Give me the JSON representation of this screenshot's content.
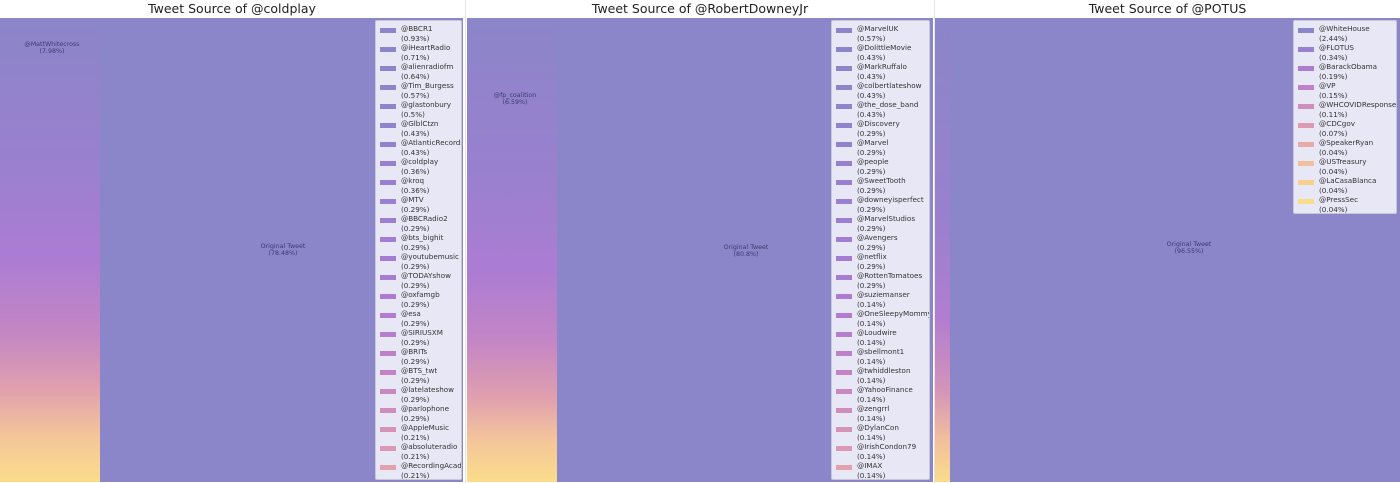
{
  "chart_data": [
    {
      "type": "treemap",
      "title": "Tweet Source of @coldplay",
      "original_label": "Original Tweet",
      "original_pct": "(78.48%)",
      "retweet_label": "@MattWhitecross",
      "retweet_pct": "(7.98%)",
      "legend": [
        {
          "name": "@BBCR1",
          "pct": "(0.93%)",
          "value": 0.93,
          "color": "#8b85c9"
        },
        {
          "name": "@iHeartRadio",
          "pct": "(0.71%)",
          "value": 0.71,
          "color": "#8b85c9"
        },
        {
          "name": "@alienradiofm",
          "pct": "(0.64%)",
          "value": 0.64,
          "color": "#8c85ca"
        },
        {
          "name": "@Tim_Burgess",
          "pct": "(0.57%)",
          "value": 0.57,
          "color": "#8d84cb"
        },
        {
          "name": "@glastonbury",
          "pct": "(0.5%)",
          "value": 0.5,
          "color": "#8f84cc"
        },
        {
          "name": "@GlblCtzn",
          "pct": "(0.43%)",
          "value": 0.43,
          "color": "#9182cd"
        },
        {
          "name": "@AtlanticRecords",
          "pct": "(0.43%)",
          "value": 0.43,
          "color": "#9381ce"
        },
        {
          "name": "@coldplay",
          "pct": "(0.36%)",
          "value": 0.36,
          "color": "#9680cf"
        },
        {
          "name": "@kroq",
          "pct": "(0.36%)",
          "value": 0.36,
          "color": "#987fd0"
        },
        {
          "name": "@MTV",
          "pct": "(0.29%)",
          "value": 0.29,
          "color": "#9b7fd1"
        },
        {
          "name": "@BBCRadio2",
          "pct": "(0.29%)",
          "value": 0.29,
          "color": "#9e7ed2"
        },
        {
          "name": "@bts_bighit",
          "pct": "(0.29%)",
          "value": 0.29,
          "color": "#a17dd3"
        },
        {
          "name": "@youtubemusic",
          "pct": "(0.29%)",
          "value": 0.29,
          "color": "#a47cd3"
        },
        {
          "name": "@TODAYshow",
          "pct": "(0.29%)",
          "value": 0.29,
          "color": "#a97cd3"
        },
        {
          "name": "@oxfamgb",
          "pct": "(0.29%)",
          "value": 0.29,
          "color": "#ad7cd2"
        },
        {
          "name": "@esa",
          "pct": "(0.29%)",
          "value": 0.29,
          "color": "#b27dd0"
        },
        {
          "name": "@SIRIUSXM",
          "pct": "(0.29%)",
          "value": 0.29,
          "color": "#b77ecd"
        },
        {
          "name": "@BRITs",
          "pct": "(0.29%)",
          "value": 0.29,
          "color": "#bd80ca"
        },
        {
          "name": "@BTS_twt",
          "pct": "(0.29%)",
          "value": 0.29,
          "color": "#c384c5"
        },
        {
          "name": "@latelateshow",
          "pct": "(0.29%)",
          "value": 0.29,
          "color": "#c888c2"
        },
        {
          "name": "@parlophone",
          "pct": "(0.29%)",
          "value": 0.29,
          "color": "#cf8dbd"
        },
        {
          "name": "@AppleMusic",
          "pct": "(0.21%)",
          "value": 0.21,
          "color": "#d593b8"
        },
        {
          "name": "@absoluteradio",
          "pct": "(0.21%)",
          "value": 0.21,
          "color": "#db9ab3"
        },
        {
          "name": "@RecordingAcad",
          "pct": "(0.21%)",
          "value": 0.21,
          "color": "#e2a2ad"
        }
      ]
    },
    {
      "type": "treemap",
      "title": "Tweet Source of @RobertDowneyJr",
      "original_label": "Original Tweet",
      "original_pct": "(80.8%)",
      "retweet_label": "@fp_coalition",
      "retweet_pct": "(6.59%)",
      "legend": [
        {
          "name": "@MarvelUK",
          "pct": "(0.57%)",
          "value": 0.57,
          "color": "#8b85c9"
        },
        {
          "name": "@DolittleMovie",
          "pct": "(0.43%)",
          "value": 0.43,
          "color": "#8b85c9"
        },
        {
          "name": "@MarkRuffalo",
          "pct": "(0.43%)",
          "value": 0.43,
          "color": "#8c85ca"
        },
        {
          "name": "@colbertlateshow",
          "pct": "(0.43%)",
          "value": 0.43,
          "color": "#8d84cb"
        },
        {
          "name": "@the_dose_band",
          "pct": "(0.43%)",
          "value": 0.43,
          "color": "#8f84cc"
        },
        {
          "name": "@Discovery",
          "pct": "(0.29%)",
          "value": 0.29,
          "color": "#9182cd"
        },
        {
          "name": "@Marvel",
          "pct": "(0.29%)",
          "value": 0.29,
          "color": "#9381ce"
        },
        {
          "name": "@people",
          "pct": "(0.29%)",
          "value": 0.29,
          "color": "#9680cf"
        },
        {
          "name": "@SweetTooth",
          "pct": "(0.29%)",
          "value": 0.29,
          "color": "#987fd0"
        },
        {
          "name": "@downeyisperfect",
          "pct": "(0.29%)",
          "value": 0.29,
          "color": "#9b7fd1"
        },
        {
          "name": "@MarvelStudios",
          "pct": "(0.29%)",
          "value": 0.29,
          "color": "#9e7ed2"
        },
        {
          "name": "@Avengers",
          "pct": "(0.29%)",
          "value": 0.29,
          "color": "#a17dd3"
        },
        {
          "name": "@netflix",
          "pct": "(0.29%)",
          "value": 0.29,
          "color": "#a47cd3"
        },
        {
          "name": "@RottenTomatoes",
          "pct": "(0.29%)",
          "value": 0.29,
          "color": "#a97cd3"
        },
        {
          "name": "@suziemanser",
          "pct": "(0.14%)",
          "value": 0.14,
          "color": "#ad7cd2"
        },
        {
          "name": "@OneSleepyMommy",
          "pct": "(0.14%)",
          "value": 0.14,
          "color": "#b27dd0"
        },
        {
          "name": "@Loudwire",
          "pct": "(0.14%)",
          "value": 0.14,
          "color": "#b77ecd"
        },
        {
          "name": "@sbellmont1",
          "pct": "(0.14%)",
          "value": 0.14,
          "color": "#bd80ca"
        },
        {
          "name": "@twhiddleston",
          "pct": "(0.14%)",
          "value": 0.14,
          "color": "#c384c5"
        },
        {
          "name": "@YahooFinance",
          "pct": "(0.14%)",
          "value": 0.14,
          "color": "#c888c2"
        },
        {
          "name": "@zengrrl",
          "pct": "(0.14%)",
          "value": 0.14,
          "color": "#cf8dbd"
        },
        {
          "name": "@DylanCon",
          "pct": "(0.14%)",
          "value": 0.14,
          "color": "#d593b8"
        },
        {
          "name": "@IrishCondon79",
          "pct": "(0.14%)",
          "value": 0.14,
          "color": "#db9ab3"
        },
        {
          "name": "@IMAX",
          "pct": "(0.14%)",
          "value": 0.14,
          "color": "#e2a2ad"
        }
      ]
    },
    {
      "type": "treemap",
      "title": "Tweet Source of @POTUS",
      "original_label": "Original Tweet",
      "original_pct": "(96.55%)",
      "retweet_label": "",
      "retweet_pct": "",
      "legend": [
        {
          "name": "@WhiteHouse",
          "pct": "(2.44%)",
          "value": 2.44,
          "color": "#8b85c9"
        },
        {
          "name": "@FLOTUS",
          "pct": "(0.34%)",
          "value": 0.34,
          "color": "#9b7fd1"
        },
        {
          "name": "@BarackObama",
          "pct": "(0.19%)",
          "value": 0.19,
          "color": "#ac7cd3"
        },
        {
          "name": "@VP",
          "pct": "(0.15%)",
          "value": 0.15,
          "color": "#bf82c8"
        },
        {
          "name": "@WHCOVIDResponse",
          "pct": "(0.11%)",
          "value": 0.11,
          "color": "#d08ebd"
        },
        {
          "name": "@CDCgov",
          "pct": "(0.07%)",
          "value": 0.07,
          "color": "#dc9bb2"
        },
        {
          "name": "@SpeakerRyan",
          "pct": "(0.04%)",
          "value": 0.04,
          "color": "#e8aaa6"
        },
        {
          "name": "@USTreasury",
          "pct": "(0.04%)",
          "value": 0.04,
          "color": "#f2bf9c"
        },
        {
          "name": "@LaCasaBlanca",
          "pct": "(0.04%)",
          "value": 0.04,
          "color": "#f7d08f"
        },
        {
          "name": "@PressSec",
          "pct": "(0.04%)",
          "value": 0.04,
          "color": "#fadc8a"
        }
      ]
    }
  ]
}
